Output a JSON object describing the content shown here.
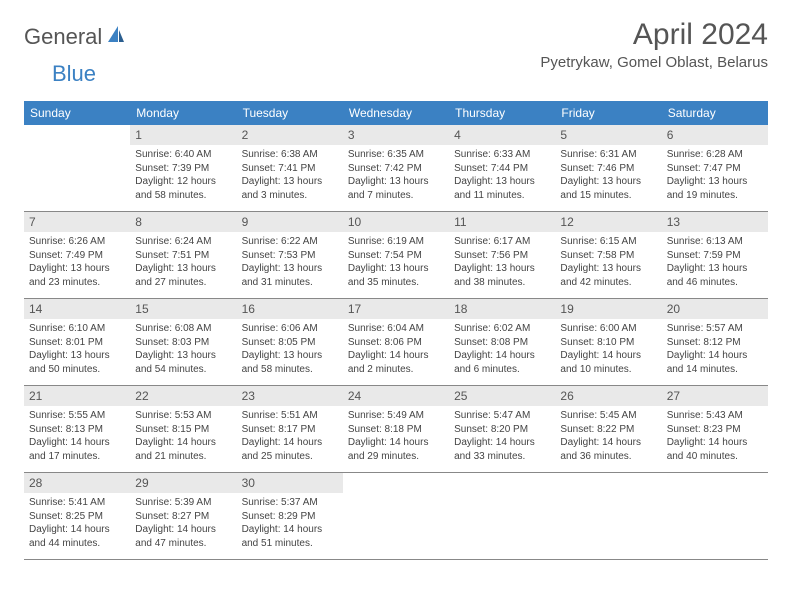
{
  "logo": {
    "general": "General",
    "blue": "Blue"
  },
  "title": "April 2024",
  "location": "Pyetrykaw, Gomel Oblast, Belarus",
  "colors": {
    "header_bg": "#3b81c3",
    "daynum_bg": "#e9e9e9",
    "text": "#444444"
  },
  "day_headers": [
    "Sunday",
    "Monday",
    "Tuesday",
    "Wednesday",
    "Thursday",
    "Friday",
    "Saturday"
  ],
  "weeks": [
    [
      {
        "empty": true
      },
      {
        "num": "1",
        "sunrise": "Sunrise: 6:40 AM",
        "sunset": "Sunset: 7:39 PM",
        "daylight1": "Daylight: 12 hours",
        "daylight2": "and 58 minutes."
      },
      {
        "num": "2",
        "sunrise": "Sunrise: 6:38 AM",
        "sunset": "Sunset: 7:41 PM",
        "daylight1": "Daylight: 13 hours",
        "daylight2": "and 3 minutes."
      },
      {
        "num": "3",
        "sunrise": "Sunrise: 6:35 AM",
        "sunset": "Sunset: 7:42 PM",
        "daylight1": "Daylight: 13 hours",
        "daylight2": "and 7 minutes."
      },
      {
        "num": "4",
        "sunrise": "Sunrise: 6:33 AM",
        "sunset": "Sunset: 7:44 PM",
        "daylight1": "Daylight: 13 hours",
        "daylight2": "and 11 minutes."
      },
      {
        "num": "5",
        "sunrise": "Sunrise: 6:31 AM",
        "sunset": "Sunset: 7:46 PM",
        "daylight1": "Daylight: 13 hours",
        "daylight2": "and 15 minutes."
      },
      {
        "num": "6",
        "sunrise": "Sunrise: 6:28 AM",
        "sunset": "Sunset: 7:47 PM",
        "daylight1": "Daylight: 13 hours",
        "daylight2": "and 19 minutes."
      }
    ],
    [
      {
        "num": "7",
        "sunrise": "Sunrise: 6:26 AM",
        "sunset": "Sunset: 7:49 PM",
        "daylight1": "Daylight: 13 hours",
        "daylight2": "and 23 minutes."
      },
      {
        "num": "8",
        "sunrise": "Sunrise: 6:24 AM",
        "sunset": "Sunset: 7:51 PM",
        "daylight1": "Daylight: 13 hours",
        "daylight2": "and 27 minutes."
      },
      {
        "num": "9",
        "sunrise": "Sunrise: 6:22 AM",
        "sunset": "Sunset: 7:53 PM",
        "daylight1": "Daylight: 13 hours",
        "daylight2": "and 31 minutes."
      },
      {
        "num": "10",
        "sunrise": "Sunrise: 6:19 AM",
        "sunset": "Sunset: 7:54 PM",
        "daylight1": "Daylight: 13 hours",
        "daylight2": "and 35 minutes."
      },
      {
        "num": "11",
        "sunrise": "Sunrise: 6:17 AM",
        "sunset": "Sunset: 7:56 PM",
        "daylight1": "Daylight: 13 hours",
        "daylight2": "and 38 minutes."
      },
      {
        "num": "12",
        "sunrise": "Sunrise: 6:15 AM",
        "sunset": "Sunset: 7:58 PM",
        "daylight1": "Daylight: 13 hours",
        "daylight2": "and 42 minutes."
      },
      {
        "num": "13",
        "sunrise": "Sunrise: 6:13 AM",
        "sunset": "Sunset: 7:59 PM",
        "daylight1": "Daylight: 13 hours",
        "daylight2": "and 46 minutes."
      }
    ],
    [
      {
        "num": "14",
        "sunrise": "Sunrise: 6:10 AM",
        "sunset": "Sunset: 8:01 PM",
        "daylight1": "Daylight: 13 hours",
        "daylight2": "and 50 minutes."
      },
      {
        "num": "15",
        "sunrise": "Sunrise: 6:08 AM",
        "sunset": "Sunset: 8:03 PM",
        "daylight1": "Daylight: 13 hours",
        "daylight2": "and 54 minutes."
      },
      {
        "num": "16",
        "sunrise": "Sunrise: 6:06 AM",
        "sunset": "Sunset: 8:05 PM",
        "daylight1": "Daylight: 13 hours",
        "daylight2": "and 58 minutes."
      },
      {
        "num": "17",
        "sunrise": "Sunrise: 6:04 AM",
        "sunset": "Sunset: 8:06 PM",
        "daylight1": "Daylight: 14 hours",
        "daylight2": "and 2 minutes."
      },
      {
        "num": "18",
        "sunrise": "Sunrise: 6:02 AM",
        "sunset": "Sunset: 8:08 PM",
        "daylight1": "Daylight: 14 hours",
        "daylight2": "and 6 minutes."
      },
      {
        "num": "19",
        "sunrise": "Sunrise: 6:00 AM",
        "sunset": "Sunset: 8:10 PM",
        "daylight1": "Daylight: 14 hours",
        "daylight2": "and 10 minutes."
      },
      {
        "num": "20",
        "sunrise": "Sunrise: 5:57 AM",
        "sunset": "Sunset: 8:12 PM",
        "daylight1": "Daylight: 14 hours",
        "daylight2": "and 14 minutes."
      }
    ],
    [
      {
        "num": "21",
        "sunrise": "Sunrise: 5:55 AM",
        "sunset": "Sunset: 8:13 PM",
        "daylight1": "Daylight: 14 hours",
        "daylight2": "and 17 minutes."
      },
      {
        "num": "22",
        "sunrise": "Sunrise: 5:53 AM",
        "sunset": "Sunset: 8:15 PM",
        "daylight1": "Daylight: 14 hours",
        "daylight2": "and 21 minutes."
      },
      {
        "num": "23",
        "sunrise": "Sunrise: 5:51 AM",
        "sunset": "Sunset: 8:17 PM",
        "daylight1": "Daylight: 14 hours",
        "daylight2": "and 25 minutes."
      },
      {
        "num": "24",
        "sunrise": "Sunrise: 5:49 AM",
        "sunset": "Sunset: 8:18 PM",
        "daylight1": "Daylight: 14 hours",
        "daylight2": "and 29 minutes."
      },
      {
        "num": "25",
        "sunrise": "Sunrise: 5:47 AM",
        "sunset": "Sunset: 8:20 PM",
        "daylight1": "Daylight: 14 hours",
        "daylight2": "and 33 minutes."
      },
      {
        "num": "26",
        "sunrise": "Sunrise: 5:45 AM",
        "sunset": "Sunset: 8:22 PM",
        "daylight1": "Daylight: 14 hours",
        "daylight2": "and 36 minutes."
      },
      {
        "num": "27",
        "sunrise": "Sunrise: 5:43 AM",
        "sunset": "Sunset: 8:23 PM",
        "daylight1": "Daylight: 14 hours",
        "daylight2": "and 40 minutes."
      }
    ],
    [
      {
        "num": "28",
        "sunrise": "Sunrise: 5:41 AM",
        "sunset": "Sunset: 8:25 PM",
        "daylight1": "Daylight: 14 hours",
        "daylight2": "and 44 minutes."
      },
      {
        "num": "29",
        "sunrise": "Sunrise: 5:39 AM",
        "sunset": "Sunset: 8:27 PM",
        "daylight1": "Daylight: 14 hours",
        "daylight2": "and 47 minutes."
      },
      {
        "num": "30",
        "sunrise": "Sunrise: 5:37 AM",
        "sunset": "Sunset: 8:29 PM",
        "daylight1": "Daylight: 14 hours",
        "daylight2": "and 51 minutes."
      },
      {
        "empty": true
      },
      {
        "empty": true
      },
      {
        "empty": true
      },
      {
        "empty": true
      }
    ]
  ]
}
